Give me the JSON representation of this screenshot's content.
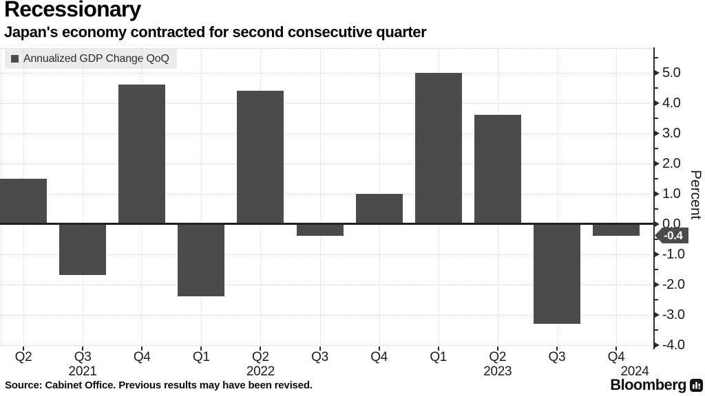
{
  "header": {
    "title": "Recessionary",
    "subtitle": "Japan's economy contracted for second consecutive quarter"
  },
  "legend": {
    "label": "Annualized GDP Change QoQ",
    "swatch_color": "#4b4b4b"
  },
  "chart_data": {
    "type": "bar",
    "title": "Recessionary",
    "subtitle": "Japan's economy contracted for second consecutive quarter",
    "series": [
      {
        "name": "Annualized GDP Change QoQ",
        "values": [
          1.5,
          -1.7,
          4.6,
          -2.4,
          4.4,
          -0.4,
          1.0,
          5.0,
          3.6,
          -3.3,
          -0.4
        ]
      }
    ],
    "categories": [
      "Q2",
      "Q3",
      "Q4",
      "Q1",
      "Q2",
      "Q3",
      "Q4",
      "Q1",
      "Q2",
      "Q3",
      "Q4"
    ],
    "year_labels": [
      {
        "index": 1,
        "year": "2021"
      },
      {
        "index": 4,
        "year": "2022"
      },
      {
        "index": 8,
        "year": "2023"
      },
      {
        "index": 10,
        "year": "2024"
      }
    ],
    "ylabel": "Percent",
    "ylim": [
      -4.0,
      5.8
    ],
    "yticks": [
      5.0,
      4.0,
      3.0,
      2.0,
      1.0,
      0.0,
      -1.0,
      -2.0,
      -3.0,
      -4.0
    ],
    "minor_tick_interval": 0.5,
    "grid": "dotted",
    "legend_position": "top-left",
    "axis_side": "right",
    "bar_color": "#4b4b4b",
    "last_value_callout": "-0.4"
  },
  "footer": {
    "source": "Source: Cabinet Office. Previous results may have been revised.",
    "brand": "Bloomberg"
  }
}
